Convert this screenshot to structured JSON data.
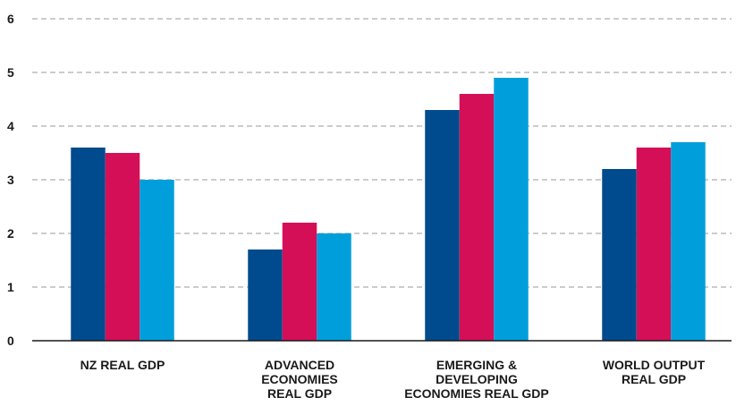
{
  "chart_data": {
    "type": "bar",
    "title": "",
    "xlabel": "",
    "ylabel": "",
    "ylim": [
      0,
      6
    ],
    "yticks": [
      0,
      1,
      2,
      3,
      4,
      5,
      6
    ],
    "grid": true,
    "categories": [
      [
        "NZ REAL GDP"
      ],
      [
        "ADVANCED",
        "ECONOMIES",
        "REAL GDP"
      ],
      [
        "EMERGING &",
        "DEVELOPING",
        "ECONOMIES REAL GDP"
      ],
      [
        "WORLD OUTPUT",
        "REAL GDP"
      ]
    ],
    "series": [
      {
        "color": "#004b8d",
        "values": [
          3.6,
          1.7,
          4.3,
          3.2
        ]
      },
      {
        "color": "#d40f58",
        "values": [
          3.5,
          2.2,
          4.6,
          3.6
        ]
      },
      {
        "color": "#009fdb",
        "values": [
          3.0,
          2.0,
          4.9,
          3.7
        ]
      }
    ]
  }
}
